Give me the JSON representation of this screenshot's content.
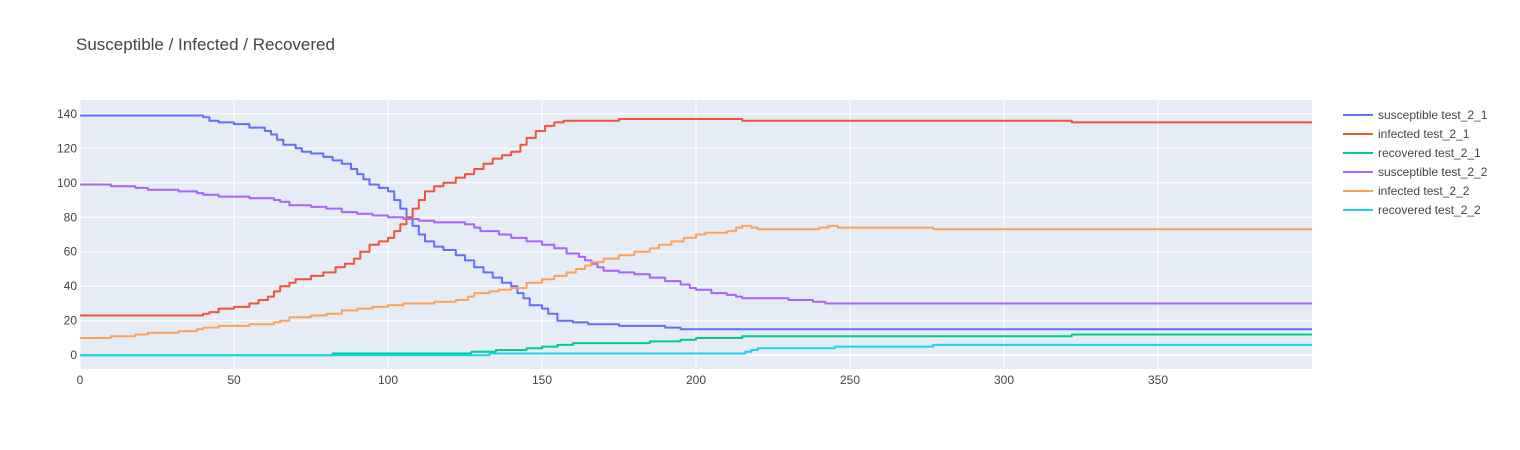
{
  "chart_data": {
    "type": "line",
    "title": "Susceptible / Infected / Recovered",
    "xlabel": "",
    "ylabel": "",
    "xlim": [
      0,
      400
    ],
    "ylim": [
      -8,
      148
    ],
    "x_ticks": [
      0,
      50,
      100,
      150,
      200,
      250,
      300,
      350
    ],
    "y_ticks": [
      0,
      20,
      40,
      60,
      80,
      100,
      120,
      140
    ],
    "grid": true,
    "legend_position": "right",
    "plot_background": "#E5ECF6",
    "series": [
      {
        "name": "susceptible test_2_1",
        "color": "#636EFA",
        "points": [
          [
            0,
            139
          ],
          [
            37,
            139
          ],
          [
            40,
            138
          ],
          [
            42,
            136
          ],
          [
            45,
            135
          ],
          [
            50,
            134
          ],
          [
            55,
            132
          ],
          [
            60,
            130
          ],
          [
            62,
            128
          ],
          [
            64,
            125
          ],
          [
            66,
            122
          ],
          [
            70,
            120
          ],
          [
            72,
            118
          ],
          [
            75,
            117
          ],
          [
            79,
            115
          ],
          [
            82,
            113
          ],
          [
            85,
            111
          ],
          [
            88,
            108
          ],
          [
            90,
            105
          ],
          [
            92,
            102
          ],
          [
            94,
            99
          ],
          [
            97,
            97
          ],
          [
            100,
            95
          ],
          [
            102,
            90
          ],
          [
            104,
            85
          ],
          [
            106,
            79
          ],
          [
            108,
            75
          ],
          [
            110,
            70
          ],
          [
            112,
            66
          ],
          [
            115,
            63
          ],
          [
            118,
            61
          ],
          [
            122,
            58
          ],
          [
            125,
            55
          ],
          [
            128,
            51
          ],
          [
            131,
            48
          ],
          [
            134,
            45
          ],
          [
            137,
            42
          ],
          [
            140,
            40
          ],
          [
            142,
            36
          ],
          [
            144,
            33
          ],
          [
            146,
            29
          ],
          [
            150,
            27
          ],
          [
            152,
            24
          ],
          [
            155,
            20
          ],
          [
            160,
            19
          ],
          [
            165,
            18
          ],
          [
            175,
            17
          ],
          [
            190,
            16
          ],
          [
            195,
            15
          ],
          [
            400,
            15
          ]
        ]
      },
      {
        "name": "infected test_2_1",
        "color": "#EF553B",
        "points": [
          [
            0,
            23
          ],
          [
            37,
            23
          ],
          [
            40,
            24
          ],
          [
            42,
            25
          ],
          [
            45,
            27
          ],
          [
            50,
            28
          ],
          [
            55,
            30
          ],
          [
            58,
            32
          ],
          [
            61,
            34
          ],
          [
            63,
            37
          ],
          [
            65,
            40
          ],
          [
            68,
            42
          ],
          [
            70,
            44
          ],
          [
            75,
            46
          ],
          [
            79,
            48
          ],
          [
            83,
            51
          ],
          [
            86,
            53
          ],
          [
            89,
            56
          ],
          [
            91,
            60
          ],
          [
            94,
            64
          ],
          [
            97,
            66
          ],
          [
            100,
            68
          ],
          [
            102,
            72
          ],
          [
            104,
            76
          ],
          [
            106,
            80
          ],
          [
            108,
            85
          ],
          [
            110,
            90
          ],
          [
            112,
            95
          ],
          [
            115,
            98
          ],
          [
            118,
            100
          ],
          [
            122,
            103
          ],
          [
            125,
            105
          ],
          [
            128,
            108
          ],
          [
            131,
            111
          ],
          [
            134,
            114
          ],
          [
            137,
            116
          ],
          [
            140,
            118
          ],
          [
            143,
            122
          ],
          [
            145,
            126
          ],
          [
            148,
            130
          ],
          [
            151,
            133
          ],
          [
            154,
            135
          ],
          [
            157,
            136
          ],
          [
            160,
            136
          ],
          [
            170,
            136
          ],
          [
            175,
            137
          ],
          [
            200,
            137
          ],
          [
            210,
            137
          ],
          [
            215,
            136
          ],
          [
            320,
            136
          ],
          [
            322,
            135
          ],
          [
            400,
            135
          ]
        ]
      },
      {
        "name": "recovered test_2_1",
        "color": "#00CC96",
        "points": [
          [
            0,
            0
          ],
          [
            80,
            0
          ],
          [
            82,
            1
          ],
          [
            125,
            1
          ],
          [
            127,
            2
          ],
          [
            132,
            2
          ],
          [
            135,
            3
          ],
          [
            145,
            4
          ],
          [
            150,
            5
          ],
          [
            155,
            6
          ],
          [
            160,
            7
          ],
          [
            185,
            8
          ],
          [
            195,
            9
          ],
          [
            200,
            10
          ],
          [
            213,
            10
          ],
          [
            215,
            11
          ],
          [
            320,
            11
          ],
          [
            322,
            12
          ],
          [
            400,
            12
          ]
        ]
      },
      {
        "name": "susceptible test_2_2",
        "color": "#AB63FA",
        "points": [
          [
            0,
            99
          ],
          [
            10,
            98
          ],
          [
            18,
            97
          ],
          [
            22,
            96
          ],
          [
            32,
            95
          ],
          [
            38,
            94
          ],
          [
            40,
            93
          ],
          [
            45,
            92
          ],
          [
            55,
            91
          ],
          [
            63,
            90
          ],
          [
            65,
            89
          ],
          [
            68,
            87
          ],
          [
            75,
            86
          ],
          [
            80,
            85
          ],
          [
            85,
            83
          ],
          [
            90,
            82
          ],
          [
            95,
            81
          ],
          [
            100,
            80
          ],
          [
            105,
            79
          ],
          [
            110,
            78
          ],
          [
            115,
            77
          ],
          [
            125,
            76
          ],
          [
            128,
            74
          ],
          [
            130,
            72
          ],
          [
            136,
            70
          ],
          [
            140,
            68
          ],
          [
            145,
            66
          ],
          [
            150,
            64
          ],
          [
            154,
            62
          ],
          [
            158,
            59
          ],
          [
            162,
            57
          ],
          [
            164,
            55
          ],
          [
            166,
            53
          ],
          [
            168,
            51
          ],
          [
            170,
            49
          ],
          [
            175,
            48
          ],
          [
            180,
            47
          ],
          [
            185,
            45
          ],
          [
            190,
            43
          ],
          [
            195,
            41
          ],
          [
            198,
            39
          ],
          [
            200,
            38
          ],
          [
            205,
            36
          ],
          [
            210,
            35
          ],
          [
            213,
            34
          ],
          [
            215,
            33
          ],
          [
            230,
            32
          ],
          [
            238,
            31
          ],
          [
            242,
            30
          ],
          [
            400,
            30
          ]
        ]
      },
      {
        "name": "infected test_2_2",
        "color": "#FFA15A",
        "points": [
          [
            0,
            10
          ],
          [
            10,
            11
          ],
          [
            18,
            12
          ],
          [
            22,
            13
          ],
          [
            32,
            14
          ],
          [
            38,
            15
          ],
          [
            40,
            16
          ],
          [
            45,
            17
          ],
          [
            55,
            18
          ],
          [
            63,
            19
          ],
          [
            65,
            20
          ],
          [
            68,
            22
          ],
          [
            75,
            23
          ],
          [
            80,
            24
          ],
          [
            85,
            26
          ],
          [
            90,
            27
          ],
          [
            95,
            28
          ],
          [
            100,
            29
          ],
          [
            105,
            30
          ],
          [
            115,
            31
          ],
          [
            122,
            32
          ],
          [
            126,
            34
          ],
          [
            128,
            36
          ],
          [
            133,
            37
          ],
          [
            136,
            38
          ],
          [
            140,
            39
          ],
          [
            145,
            42
          ],
          [
            150,
            44
          ],
          [
            154,
            46
          ],
          [
            158,
            48
          ],
          [
            161,
            50
          ],
          [
            164,
            52
          ],
          [
            166,
            54
          ],
          [
            170,
            56
          ],
          [
            175,
            58
          ],
          [
            180,
            60
          ],
          [
            185,
            62
          ],
          [
            188,
            64
          ],
          [
            192,
            66
          ],
          [
            196,
            68
          ],
          [
            200,
            70
          ],
          [
            203,
            71
          ],
          [
            210,
            72
          ],
          [
            213,
            74
          ],
          [
            215,
            75
          ],
          [
            218,
            74
          ],
          [
            220,
            73
          ],
          [
            235,
            73
          ],
          [
            240,
            74
          ],
          [
            243,
            75
          ],
          [
            246,
            74
          ],
          [
            275,
            74
          ],
          [
            277,
            73
          ],
          [
            400,
            73
          ]
        ]
      },
      {
        "name": "recovered test_2_2",
        "color": "#19D3F3",
        "points": [
          [
            0,
            0
          ],
          [
            131,
            0
          ],
          [
            133,
            1
          ],
          [
            214,
            1
          ],
          [
            216,
            2
          ],
          [
            218,
            3
          ],
          [
            220,
            4
          ],
          [
            235,
            4
          ],
          [
            245,
            5
          ],
          [
            275,
            5
          ],
          [
            277,
            6
          ],
          [
            400,
            6
          ]
        ]
      }
    ]
  }
}
